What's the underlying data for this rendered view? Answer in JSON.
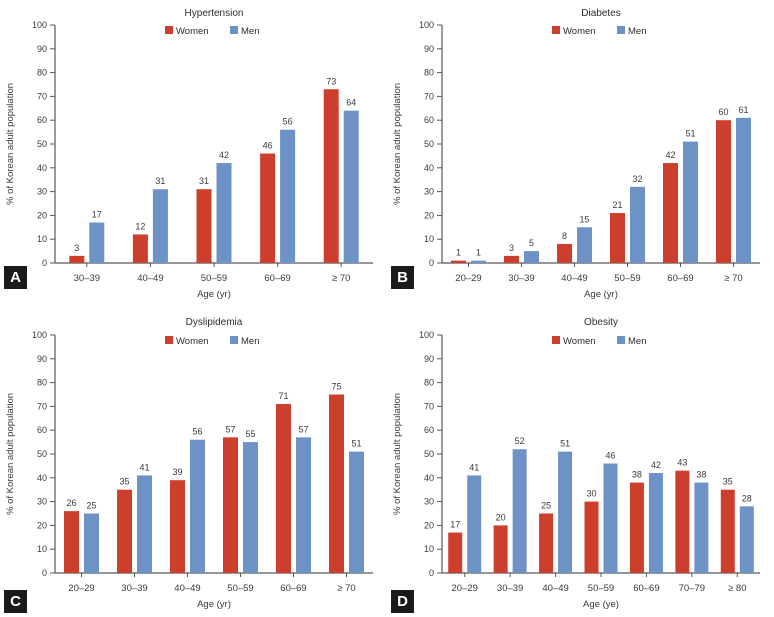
{
  "figure": {
    "ylabel": "% of Korean adult population",
    "legend": {
      "women": "Women",
      "men": "Men",
      "position": "top-center"
    },
    "colors": {
      "women": "#cd3f2d",
      "men": "#6d92c5",
      "axis": "#58585a",
      "text": "#3a3a3c",
      "title": "#2d2d2f",
      "badge_bg": "#1a1a1a",
      "badge_text": "#ffffff",
      "background": "#ffffff"
    }
  },
  "chart_data": [
    {
      "panel": "A",
      "type": "bar",
      "title": "Hypertension",
      "xlabel": "Age (yr)",
      "ylabel": "% of Korean adult population",
      "ylim": [
        0,
        100
      ],
      "ytick_step": 10,
      "grid": false,
      "legend_position": "top-center",
      "categories": [
        "30–39",
        "40–49",
        "50–59",
        "60–69",
        "≥ 70"
      ],
      "series": [
        {
          "name": "Women",
          "color": "#cd3f2d",
          "values": [
            3,
            12,
            31,
            46,
            73
          ]
        },
        {
          "name": "Men",
          "color": "#6d92c5",
          "values": [
            17,
            31,
            42,
            56,
            64
          ]
        }
      ]
    },
    {
      "panel": "B",
      "type": "bar",
      "title": "Diabetes",
      "xlabel": "Age (yr)",
      "ylabel": "% of Korean adult population",
      "ylim": [
        0,
        100
      ],
      "ytick_step": 10,
      "grid": false,
      "legend_position": "top-center",
      "categories": [
        "20–29",
        "30–39",
        "40–49",
        "50–59",
        "60–69",
        "≥ 70"
      ],
      "series": [
        {
          "name": "Women",
          "color": "#cd3f2d",
          "values": [
            1,
            3,
            8,
            21,
            42,
            60
          ]
        },
        {
          "name": "Men",
          "color": "#6d92c5",
          "values": [
            1,
            5,
            15,
            32,
            51,
            61
          ]
        }
      ]
    },
    {
      "panel": "C",
      "type": "bar",
      "title": "Dyslipidemia",
      "xlabel": "Age (yr)",
      "ylabel": "% of Korean adult population",
      "ylim": [
        0,
        100
      ],
      "ytick_step": 10,
      "grid": false,
      "legend_position": "top-center",
      "categories": [
        "20–29",
        "30–39",
        "40–49",
        "50–59",
        "60–69",
        "≥ 70"
      ],
      "series": [
        {
          "name": "Women",
          "color": "#cd3f2d",
          "values": [
            26,
            35,
            39,
            57,
            71,
            75
          ]
        },
        {
          "name": "Men",
          "color": "#6d92c5",
          "values": [
            25,
            41,
            56,
            55,
            57,
            51
          ]
        }
      ]
    },
    {
      "panel": "D",
      "type": "bar",
      "title": "Obesity",
      "xlabel": "Age (ye)",
      "ylabel": "% of Korean adult population",
      "ylim": [
        0,
        100
      ],
      "ytick_step": 10,
      "grid": false,
      "legend_position": "top-center",
      "categories": [
        "20–29",
        "30–39",
        "40–49",
        "50–59",
        "60–69",
        "70–79",
        "≥ 80"
      ],
      "series": [
        {
          "name": "Women",
          "color": "#cd3f2d",
          "values": [
            17,
            20,
            25,
            30,
            38,
            43,
            35
          ]
        },
        {
          "name": "Men",
          "color": "#6d92c5",
          "values": [
            41,
            52,
            51,
            46,
            42,
            38,
            28
          ]
        }
      ]
    }
  ]
}
